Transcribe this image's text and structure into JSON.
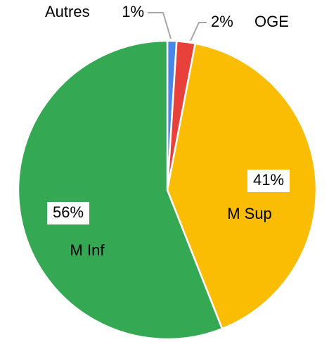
{
  "chart_data": {
    "type": "pie",
    "categories": [
      "Autres",
      "OGE",
      "M Sup",
      "M Inf"
    ],
    "values": [
      1,
      2,
      41,
      56
    ],
    "value_labels": [
      "1%",
      "2%",
      "41%",
      "56%"
    ],
    "colors": [
      "#4a86e8",
      "#e8403a",
      "#fbbc04",
      "#34a853"
    ]
  }
}
